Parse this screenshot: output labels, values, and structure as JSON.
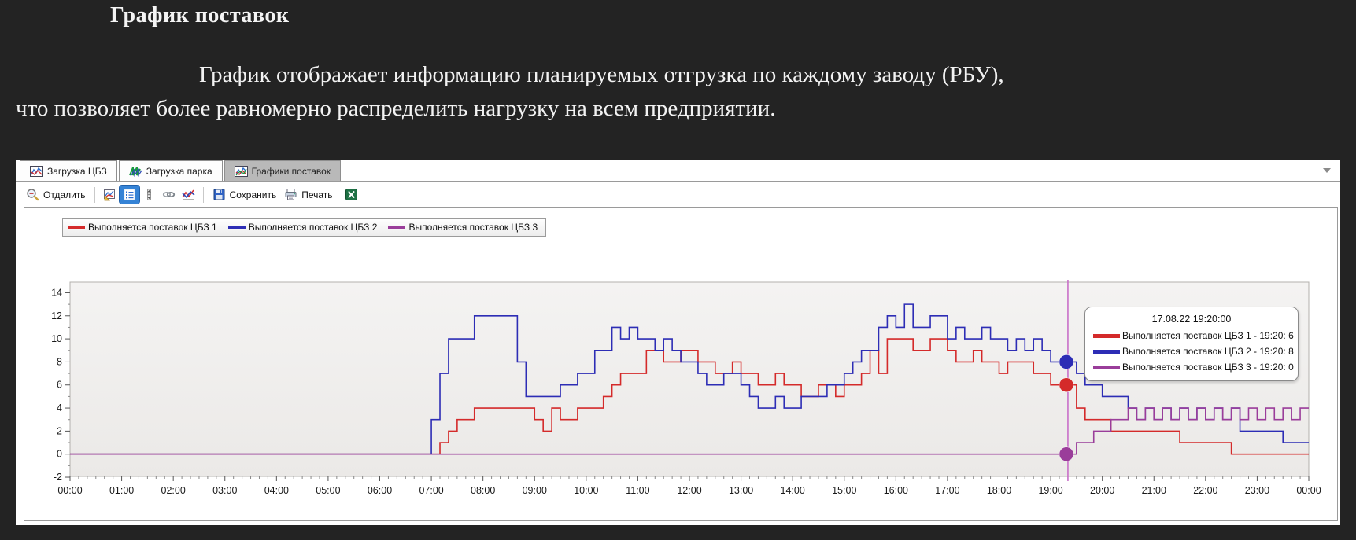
{
  "page": {
    "title": "График поставок",
    "paragraph_line1": "График отображает информацию планируемых отгрузка по каждому заводу (РБУ),",
    "paragraph_line2": "что позволяет более равномерно распределить нагрузку на всем предприятии."
  },
  "app": {
    "tabs": [
      {
        "label": "Загрузка ЦБЗ",
        "active": false
      },
      {
        "label": "Загрузка парка",
        "active": false
      },
      {
        "label": "Графики поставок",
        "active": true
      }
    ],
    "toolbar": {
      "zoom_out_label": "Отдалить",
      "save_label": "Сохранить",
      "print_label": "Печать"
    }
  },
  "chart_data": {
    "type": "line",
    "step": true,
    "title": "",
    "xlabel": "",
    "ylabel": "",
    "x_axis": {
      "unit": "time of day",
      "ticks": [
        "00:00",
        "01:00",
        "02:00",
        "03:00",
        "04:00",
        "05:00",
        "06:00",
        "07:00",
        "08:00",
        "09:00",
        "10:00",
        "11:00",
        "12:00",
        "13:00",
        "14:00",
        "15:00",
        "16:00",
        "17:00",
        "18:00",
        "19:00",
        "20:00",
        "21:00",
        "22:00",
        "23:00",
        "00:00"
      ],
      "minor_tick_minutes": 10
    },
    "y_axis": {
      "ticks": [
        -2,
        0,
        2,
        4,
        6,
        8,
        10,
        12,
        14
      ],
      "range": [
        -2,
        15
      ]
    },
    "series": [
      {
        "name": "Выполняется поставок ЦБЗ 1",
        "color": "#d42a2a",
        "points": [
          [
            0,
            0
          ],
          [
            430,
            1
          ],
          [
            440,
            2
          ],
          [
            450,
            3
          ],
          [
            470,
            4
          ],
          [
            540,
            3
          ],
          [
            550,
            2
          ],
          [
            560,
            4
          ],
          [
            570,
            3
          ],
          [
            590,
            4
          ],
          [
            620,
            5
          ],
          [
            630,
            6
          ],
          [
            640,
            7
          ],
          [
            670,
            9
          ],
          [
            690,
            8
          ],
          [
            710,
            9
          ],
          [
            730,
            8
          ],
          [
            750,
            7
          ],
          [
            770,
            8
          ],
          [
            780,
            7
          ],
          [
            800,
            6
          ],
          [
            820,
            7
          ],
          [
            830,
            6
          ],
          [
            850,
            5
          ],
          [
            870,
            6
          ],
          [
            890,
            5
          ],
          [
            900,
            6
          ],
          [
            920,
            7
          ],
          [
            930,
            9
          ],
          [
            940,
            7
          ],
          [
            950,
            10
          ],
          [
            980,
            9
          ],
          [
            1000,
            10
          ],
          [
            1020,
            9
          ],
          [
            1030,
            8
          ],
          [
            1050,
            9
          ],
          [
            1060,
            8
          ],
          [
            1080,
            7
          ],
          [
            1090,
            8
          ],
          [
            1120,
            7
          ],
          [
            1140,
            6
          ],
          [
            1170,
            4
          ],
          [
            1180,
            3
          ],
          [
            1210,
            2
          ],
          [
            1290,
            1
          ],
          [
            1350,
            0
          ]
        ]
      },
      {
        "name": "Выполняется поставок ЦБЗ 2",
        "color": "#2d2db5",
        "points": [
          [
            0,
            0
          ],
          [
            420,
            3
          ],
          [
            430,
            7
          ],
          [
            440,
            10
          ],
          [
            470,
            12
          ],
          [
            520,
            8
          ],
          [
            530,
            5
          ],
          [
            570,
            6
          ],
          [
            590,
            7
          ],
          [
            610,
            9
          ],
          [
            630,
            11
          ],
          [
            640,
            10
          ],
          [
            650,
            11
          ],
          [
            660,
            10
          ],
          [
            680,
            9
          ],
          [
            690,
            10
          ],
          [
            700,
            9
          ],
          [
            710,
            8
          ],
          [
            730,
            7
          ],
          [
            740,
            6
          ],
          [
            760,
            7
          ],
          [
            780,
            6
          ],
          [
            790,
            5
          ],
          [
            800,
            4
          ],
          [
            820,
            5
          ],
          [
            830,
            4
          ],
          [
            850,
            5
          ],
          [
            880,
            6
          ],
          [
            900,
            7
          ],
          [
            910,
            8
          ],
          [
            920,
            9
          ],
          [
            940,
            11
          ],
          [
            950,
            12
          ],
          [
            960,
            11
          ],
          [
            970,
            13
          ],
          [
            980,
            11
          ],
          [
            1000,
            12
          ],
          [
            1020,
            10
          ],
          [
            1030,
            11
          ],
          [
            1040,
            10
          ],
          [
            1060,
            11
          ],
          [
            1070,
            10
          ],
          [
            1090,
            9
          ],
          [
            1100,
            10
          ],
          [
            1110,
            9
          ],
          [
            1120,
            10
          ],
          [
            1130,
            9
          ],
          [
            1140,
            8
          ],
          [
            1170,
            7
          ],
          [
            1180,
            6
          ],
          [
            1200,
            5
          ],
          [
            1230,
            4
          ],
          [
            1240,
            3
          ],
          [
            1250,
            4
          ],
          [
            1260,
            3
          ],
          [
            1270,
            4
          ],
          [
            1280,
            3
          ],
          [
            1290,
            4
          ],
          [
            1300,
            3
          ],
          [
            1310,
            4
          ],
          [
            1320,
            3
          ],
          [
            1330,
            4
          ],
          [
            1340,
            3
          ],
          [
            1350,
            4
          ],
          [
            1360,
            2
          ],
          [
            1410,
            1
          ]
        ]
      },
      {
        "name": "Выполняется поставок ЦБЗ 3",
        "color": "#9a3d9a",
        "points": [
          [
            0,
            0
          ],
          [
            1170,
            1
          ],
          [
            1190,
            2
          ],
          [
            1210,
            3
          ],
          [
            1230,
            4
          ],
          [
            1240,
            3
          ],
          [
            1250,
            4
          ],
          [
            1260,
            3
          ],
          [
            1270,
            4
          ],
          [
            1280,
            3
          ],
          [
            1290,
            4
          ],
          [
            1300,
            3
          ],
          [
            1310,
            4
          ],
          [
            1320,
            3
          ],
          [
            1330,
            4
          ],
          [
            1340,
            3
          ],
          [
            1350,
            4
          ],
          [
            1360,
            3
          ],
          [
            1370,
            4
          ],
          [
            1380,
            3
          ],
          [
            1390,
            4
          ],
          [
            1400,
            3
          ],
          [
            1410,
            4
          ],
          [
            1420,
            3
          ],
          [
            1430,
            4
          ]
        ]
      }
    ],
    "cursor": {
      "time_minutes": 1160,
      "time_label": "19:20",
      "color": "#c96fc9"
    },
    "tooltip": {
      "title": "17.08.22 19:20:00",
      "rows": [
        "Выполняется поставок ЦБЗ 1 - 19:20: 6",
        "Выполняется поставок ЦБЗ 2 - 19:20: 8",
        "Выполняется поставок ЦБЗ 3 - 19:20: 0"
      ],
      "values_at_cursor": [
        6,
        8,
        0
      ]
    },
    "legend_position": "top-left",
    "grid": false
  }
}
